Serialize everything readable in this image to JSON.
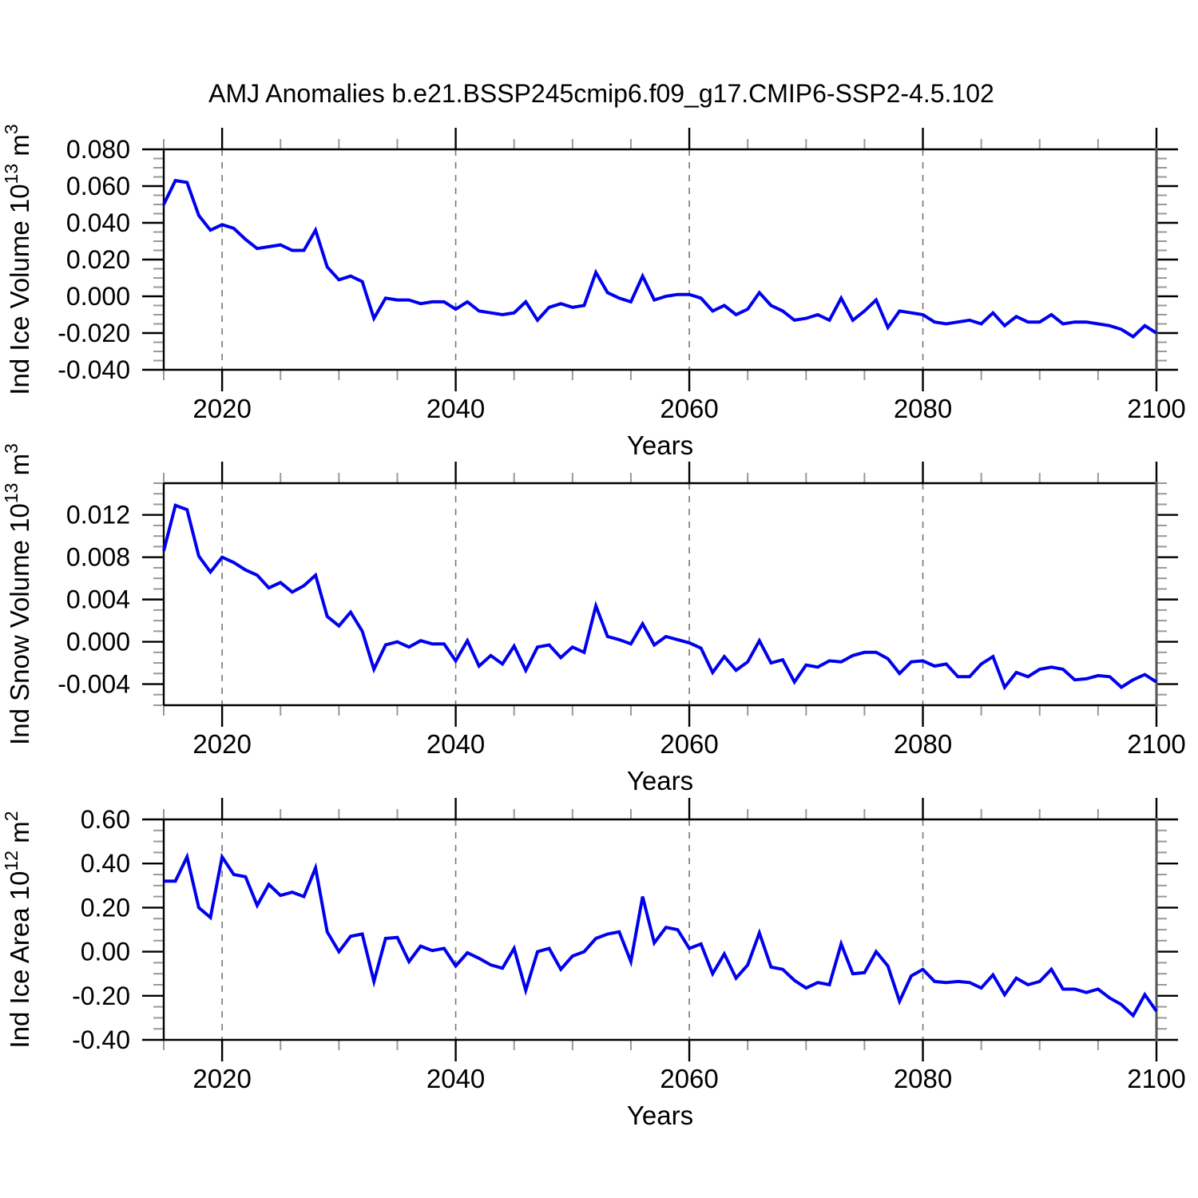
{
  "title": "AMJ Anomalies b.e21.BSSP245cmip6.f09_g17.CMIP6-SSP2-4.5.102",
  "colors": {
    "series_line": "#0000ee",
    "frame": "#000000",
    "right_spine": "#555555",
    "grid_line": "#777777",
    "minor_tick": "#999999",
    "text": "#000000",
    "background": "#ffffff"
  },
  "chart_data": {
    "type": "line",
    "title": "AMJ Anomalies b.e21.BSSP245cmip6.f09_g17.CMIP6-SSP2-4.5.102",
    "xlabel": "Years",
    "xlim": [
      2015,
      2100
    ],
    "xticks": [
      {
        "v": 2020,
        "label": "2020"
      },
      {
        "v": 2040,
        "label": "2040"
      },
      {
        "v": 2060,
        "label": "2060"
      },
      {
        "v": 2080,
        "label": "2080"
      },
      {
        "v": 2100,
        "label": "2100"
      }
    ],
    "x_minor_step": 5,
    "grid_x": [
      2020,
      2040,
      2060,
      2080
    ],
    "grid_on": true,
    "legend": "none",
    "x": [
      2015,
      2016,
      2017,
      2018,
      2019,
      2020,
      2021,
      2022,
      2023,
      2024,
      2025,
      2026,
      2027,
      2028,
      2029,
      2030,
      2031,
      2032,
      2033,
      2034,
      2035,
      2036,
      2037,
      2038,
      2039,
      2040,
      2041,
      2042,
      2043,
      2044,
      2045,
      2046,
      2047,
      2048,
      2049,
      2050,
      2051,
      2052,
      2053,
      2054,
      2055,
      2056,
      2057,
      2058,
      2059,
      2060,
      2061,
      2062,
      2063,
      2064,
      2065,
      2066,
      2067,
      2068,
      2069,
      2070,
      2071,
      2072,
      2073,
      2074,
      2075,
      2076,
      2077,
      2078,
      2079,
      2080,
      2081,
      2082,
      2083,
      2084,
      2085,
      2086,
      2087,
      2088,
      2089,
      2090,
      2091,
      2092,
      2093,
      2094,
      2095,
      2096,
      2097,
      2098,
      2099,
      2100
    ],
    "panels": [
      {
        "ylabel": "Ind Ice Volume 10^13 m^3",
        "ylim": [
          -0.04,
          0.08
        ],
        "yticks": [
          {
            "v": 0.08,
            "label": "0.080"
          },
          {
            "v": 0.06,
            "label": "0.060"
          },
          {
            "v": 0.04,
            "label": "0.040"
          },
          {
            "v": 0.02,
            "label": "0.020"
          },
          {
            "v": 0.0,
            "label": "0.000"
          },
          {
            "v": -0.02,
            "label": "-0.020"
          },
          {
            "v": -0.04,
            "label": "-0.040"
          }
        ],
        "y_minor_step": 0.005,
        "values": [
          0.05,
          0.063,
          0.062,
          0.044,
          0.036,
          0.039,
          0.037,
          0.031,
          0.026,
          0.027,
          0.028,
          0.025,
          0.025,
          0.036,
          0.016,
          0.009,
          0.011,
          0.008,
          -0.012,
          -0.001,
          -0.002,
          -0.002,
          -0.004,
          -0.003,
          -0.003,
          -0.007,
          -0.003,
          -0.008,
          -0.009,
          -0.01,
          -0.009,
          -0.003,
          -0.013,
          -0.006,
          -0.004,
          -0.006,
          -0.005,
          0.013,
          0.002,
          -0.001,
          -0.003,
          0.011,
          -0.002,
          0.0,
          0.001,
          0.001,
          -0.001,
          -0.008,
          -0.005,
          -0.01,
          -0.007,
          0.002,
          -0.005,
          -0.008,
          -0.013,
          -0.012,
          -0.01,
          -0.013,
          -0.001,
          -0.013,
          -0.008,
          -0.002,
          -0.017,
          -0.008,
          -0.009,
          -0.01,
          -0.014,
          -0.015,
          -0.014,
          -0.013,
          -0.015,
          -0.009,
          -0.016,
          -0.011,
          -0.014,
          -0.014,
          -0.01,
          -0.015,
          -0.014,
          -0.014,
          -0.015,
          -0.016,
          -0.018,
          -0.022,
          -0.016,
          -0.02
        ]
      },
      {
        "ylabel": "Ind Snow Volume 10^13 m^3",
        "ylim": [
          -0.006,
          0.015
        ],
        "yticks": [
          {
            "v": 0.012,
            "label": "0.012"
          },
          {
            "v": 0.008,
            "label": "0.008"
          },
          {
            "v": 0.004,
            "label": "0.004"
          },
          {
            "v": 0.0,
            "label": "0.000"
          },
          {
            "v": -0.004,
            "label": "-0.004"
          }
        ],
        "y_minor_step": 0.001,
        "values": [
          0.0086,
          0.0129,
          0.0125,
          0.0081,
          0.0066,
          0.008,
          0.0075,
          0.0068,
          0.0063,
          0.0051,
          0.0056,
          0.0047,
          0.0053,
          0.0063,
          0.0024,
          0.0015,
          0.0028,
          0.001,
          -0.0026,
          -0.0003,
          0.0,
          -0.0005,
          0.0001,
          -0.0002,
          -0.0002,
          -0.0018,
          0.0001,
          -0.0023,
          -0.0013,
          -0.0021,
          -0.0004,
          -0.0027,
          -0.0005,
          -0.0003,
          -0.0015,
          -0.0005,
          -0.001,
          0.0034,
          0.0005,
          0.0002,
          -0.0002,
          0.0017,
          -0.0003,
          0.0005,
          0.0002,
          -0.0001,
          -0.0006,
          -0.0029,
          -0.0014,
          -0.0027,
          -0.0019,
          0.0001,
          -0.002,
          -0.0017,
          -0.0038,
          -0.0022,
          -0.0024,
          -0.0018,
          -0.0019,
          -0.0013,
          -0.001,
          -0.001,
          -0.0016,
          -0.003,
          -0.0019,
          -0.0018,
          -0.0023,
          -0.0021,
          -0.0033,
          -0.0033,
          -0.0021,
          -0.0014,
          -0.0043,
          -0.0029,
          -0.0033,
          -0.0026,
          -0.0024,
          -0.0026,
          -0.0036,
          -0.0035,
          -0.0032,
          -0.0033,
          -0.0043,
          -0.0036,
          -0.0031,
          -0.0038
        ]
      },
      {
        "ylabel": "Ind Ice Area 10^12 m^2",
        "ylim": [
          -0.4,
          0.6
        ],
        "yticks": [
          {
            "v": 0.6,
            "label": "0.60"
          },
          {
            "v": 0.4,
            "label": "0.40"
          },
          {
            "v": 0.2,
            "label": "0.20"
          },
          {
            "v": 0.0,
            "label": "0.00"
          },
          {
            "v": -0.2,
            "label": "-0.20"
          },
          {
            "v": -0.4,
            "label": "-0.40"
          }
        ],
        "y_minor_step": 0.05,
        "values": [
          0.32,
          0.32,
          0.43,
          0.2,
          0.155,
          0.43,
          0.35,
          0.34,
          0.21,
          0.305,
          0.255,
          0.27,
          0.25,
          0.38,
          0.09,
          0.0,
          0.07,
          0.08,
          -0.135,
          0.06,
          0.065,
          -0.045,
          0.025,
          0.005,
          0.015,
          -0.065,
          -0.005,
          -0.03,
          -0.06,
          -0.075,
          0.015,
          -0.175,
          0.0,
          0.015,
          -0.08,
          -0.02,
          0.0,
          0.06,
          0.08,
          0.09,
          -0.045,
          0.25,
          0.04,
          0.11,
          0.1,
          0.015,
          0.035,
          -0.1,
          -0.01,
          -0.12,
          -0.06,
          0.085,
          -0.07,
          -0.08,
          -0.13,
          -0.165,
          -0.14,
          -0.15,
          0.035,
          -0.1,
          -0.095,
          0.0,
          -0.065,
          -0.225,
          -0.11,
          -0.08,
          -0.135,
          -0.14,
          -0.135,
          -0.14,
          -0.165,
          -0.105,
          -0.195,
          -0.12,
          -0.15,
          -0.135,
          -0.08,
          -0.17,
          -0.17,
          -0.185,
          -0.17,
          -0.21,
          -0.24,
          -0.29,
          -0.195,
          -0.27
        ]
      }
    ]
  }
}
